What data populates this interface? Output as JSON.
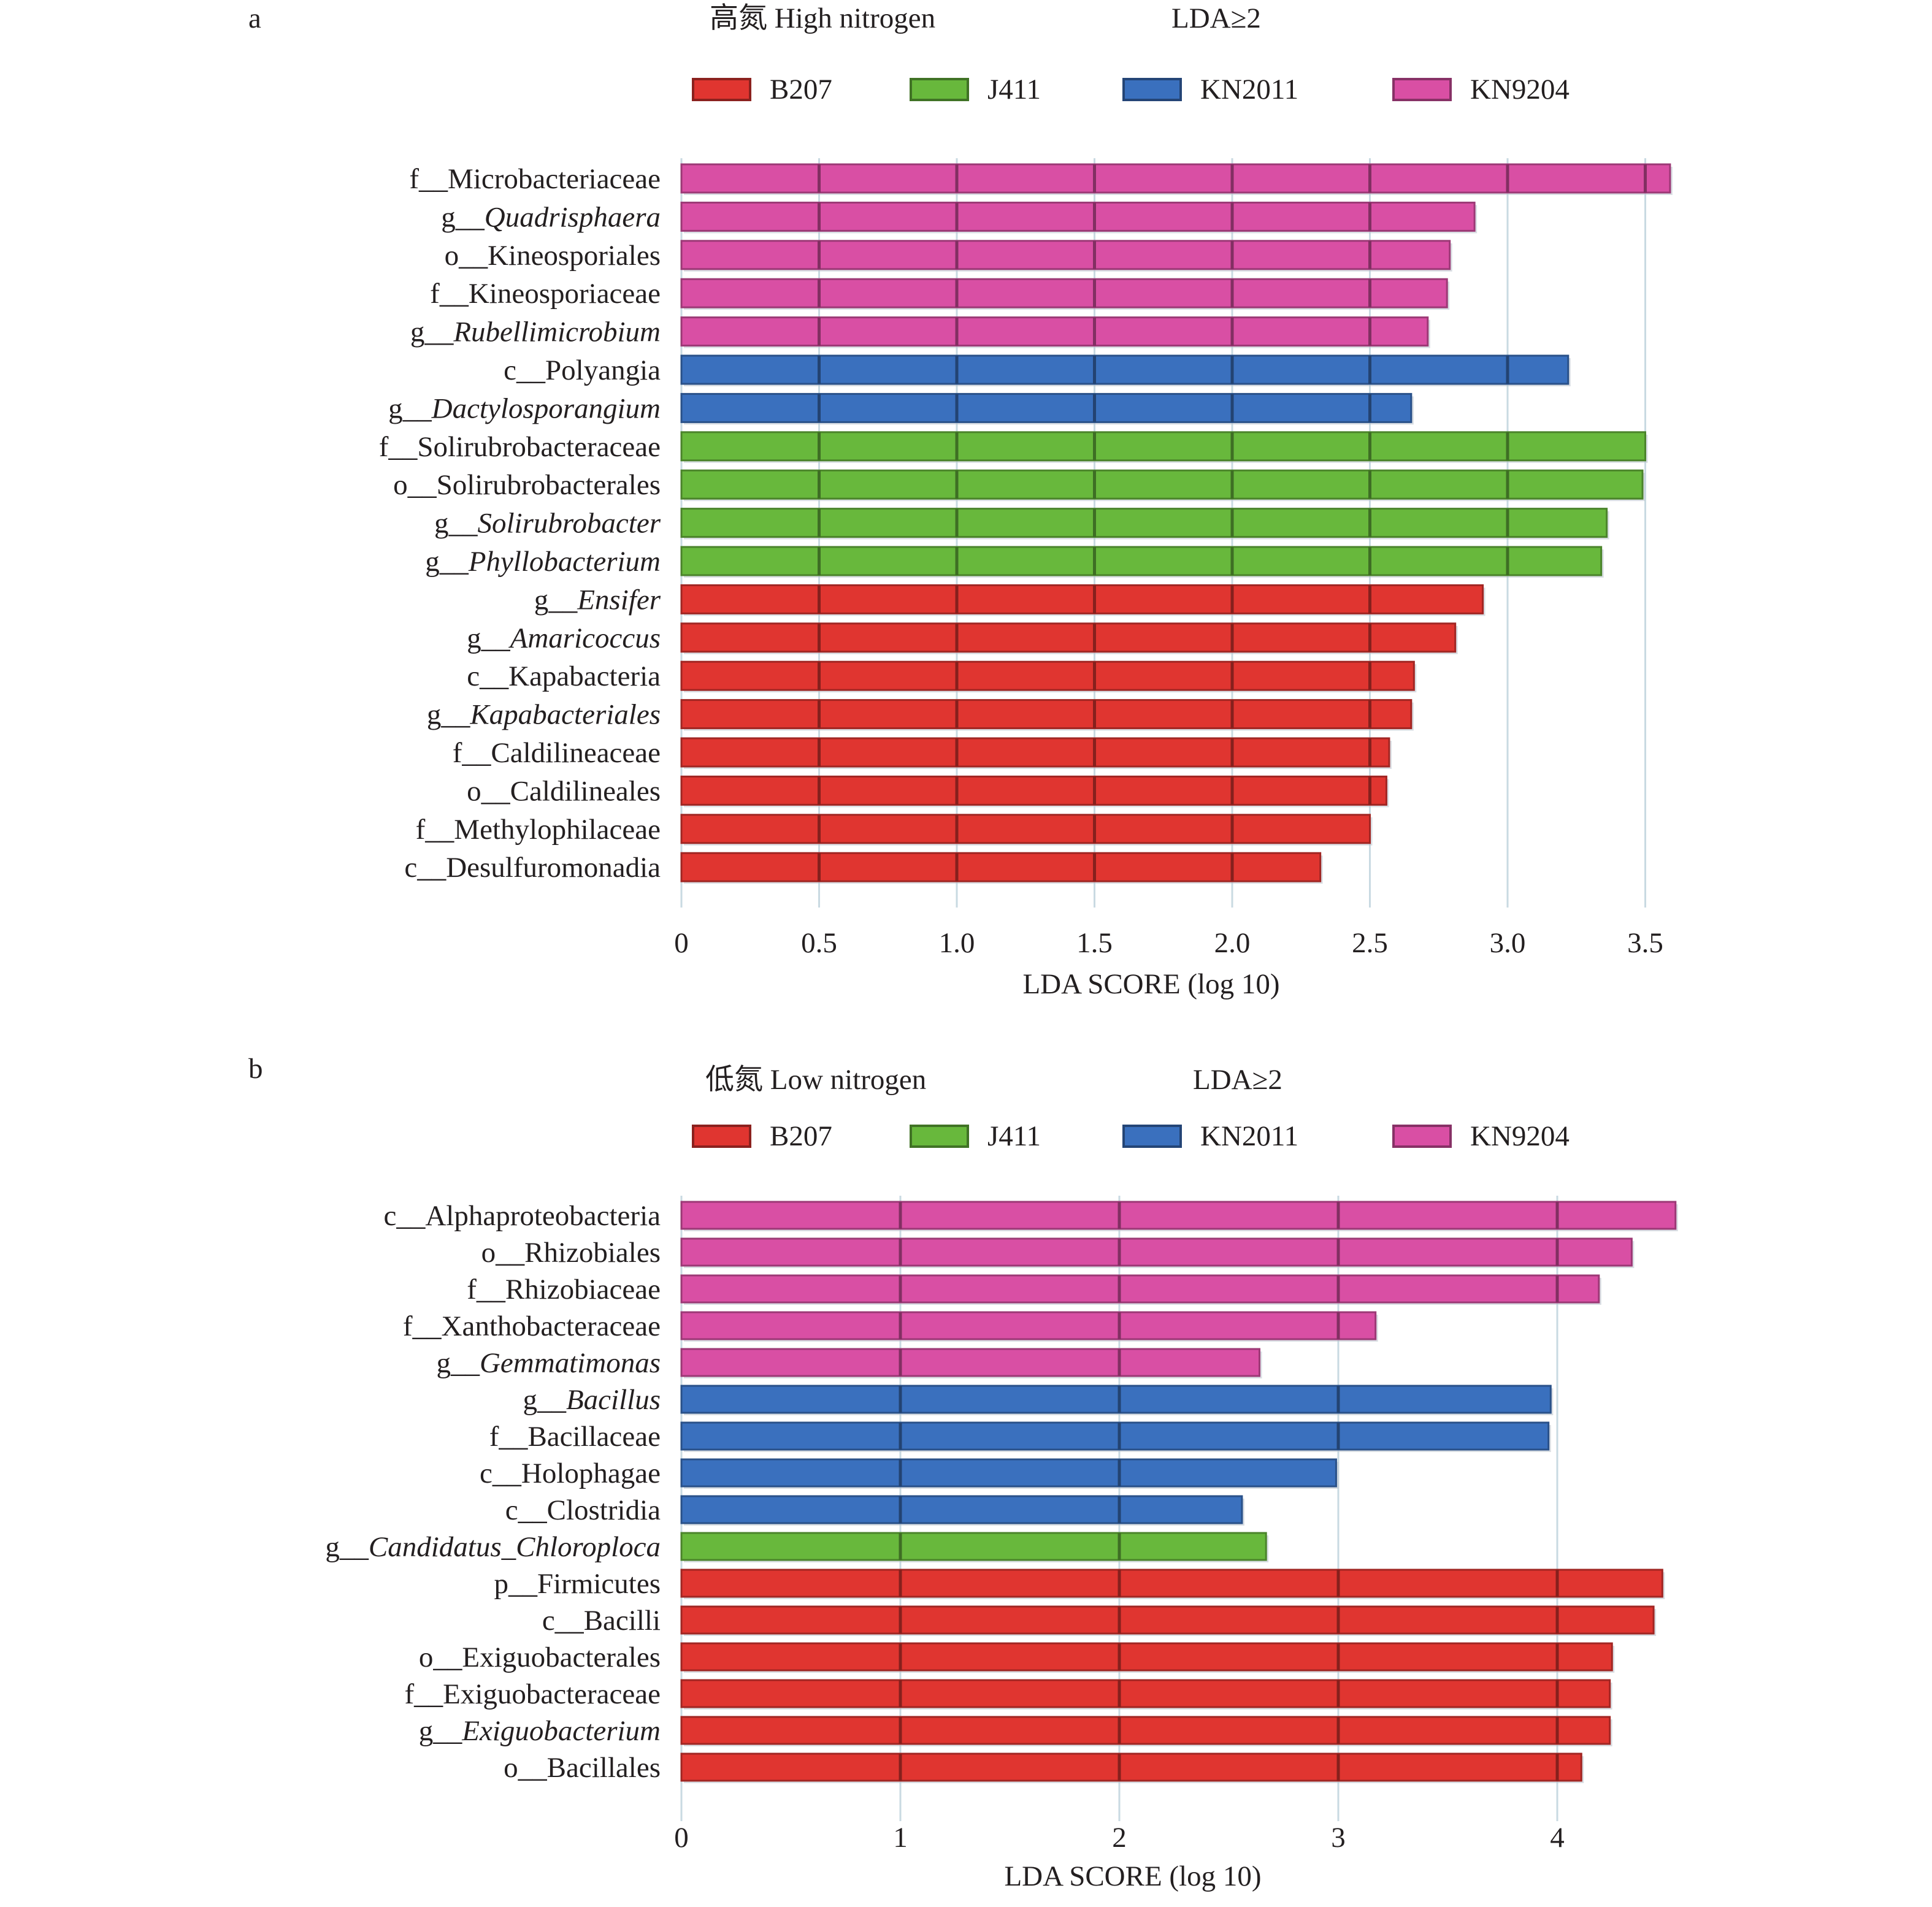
{
  "colors": {
    "B207": "#e03530",
    "J411": "#68b83c",
    "KN2011": "#3a70be",
    "KN9204": "#d94fa4",
    "gridline": "#c9dae2",
    "text": "#231f20"
  },
  "chart_data": [
    {
      "type": "bar",
      "orientation": "horizontal",
      "panel_label": "a",
      "title": "高氮 High nitrogen",
      "threshold_label": "LDA≥2",
      "xlabel": "LDA SCORE (log 10)",
      "ylabel": "",
      "xlim": [
        0,
        3.6
      ],
      "xticks": [
        0,
        0.5,
        1.0,
        1.5,
        2.0,
        2.5,
        3.0,
        3.5
      ],
      "xtick_labels": [
        "0",
        "0.5",
        "1.0",
        "1.5",
        "2.0",
        "2.5",
        "3.0",
        "3.5"
      ],
      "grid": "vertical",
      "legend": {
        "position": "top",
        "entries": [
          "B207",
          "J411",
          "KN2011",
          "KN9204"
        ]
      },
      "bars": [
        {
          "prefix": "f__",
          "name": "Microbacteriaceae",
          "italic": false,
          "group": "KN9204",
          "value": 3.59
        },
        {
          "prefix": "g__",
          "name": "Quadrisphaera",
          "italic": true,
          "group": "KN9204",
          "value": 2.88
        },
        {
          "prefix": "o__",
          "name": "Kineosporiales",
          "italic": false,
          "group": "KN9204",
          "value": 2.79
        },
        {
          "prefix": "f__",
          "name": "Kineosporiaceae",
          "italic": false,
          "group": "KN9204",
          "value": 2.78
        },
        {
          "prefix": "g__",
          "name": "Rubellimicrobium",
          "italic": true,
          "group": "KN9204",
          "value": 2.71
        },
        {
          "prefix": "c__",
          "name": "Polyangia",
          "italic": false,
          "group": "KN2011",
          "value": 3.22
        },
        {
          "prefix": "g__",
          "name": "Dactylosporangium",
          "italic": true,
          "group": "KN2011",
          "value": 2.65
        },
        {
          "prefix": "f__",
          "name": "Solirubrobacteraceae",
          "italic": false,
          "group": "J411",
          "value": 3.5
        },
        {
          "prefix": "o__",
          "name": "Solirubrobacterales",
          "italic": false,
          "group": "J411",
          "value": 3.49
        },
        {
          "prefix": "g__",
          "name": "Solirubrobacter",
          "italic": true,
          "group": "J411",
          "value": 3.36
        },
        {
          "prefix": "g__",
          "name": "Phyllobacterium",
          "italic": true,
          "group": "J411",
          "value": 3.34
        },
        {
          "prefix": "g__",
          "name": "Ensifer",
          "italic": true,
          "group": "B207",
          "value": 2.91
        },
        {
          "prefix": "g__",
          "name": "Amaricoccus",
          "italic": true,
          "group": "B207",
          "value": 2.81
        },
        {
          "prefix": "c__",
          "name": "Kapabacteria",
          "italic": false,
          "group": "B207",
          "value": 2.66
        },
        {
          "prefix": "g__",
          "name": "Kapabacteriales",
          "italic": true,
          "group": "B207",
          "value": 2.65
        },
        {
          "prefix": "f__",
          "name": "Caldilineaceae",
          "italic": false,
          "group": "B207",
          "value": 2.57
        },
        {
          "prefix": "o__",
          "name": "Caldilineales",
          "italic": false,
          "group": "B207",
          "value": 2.56
        },
        {
          "prefix": "f__",
          "name": "Methylophilaceae",
          "italic": false,
          "group": "B207",
          "value": 2.5
        },
        {
          "prefix": "c__",
          "name": "Desulfuromonadia",
          "italic": false,
          "group": "B207",
          "value": 2.32
        }
      ]
    },
    {
      "type": "bar",
      "orientation": "horizontal",
      "panel_label": "b",
      "title": "低氮 Low nitrogen",
      "threshold_label": "LDA≥2",
      "xlabel": "LDA SCORE (log 10)",
      "ylabel": "",
      "xlim": [
        0,
        4.55
      ],
      "xticks": [
        0,
        1,
        2,
        3,
        4
      ],
      "xtick_labels": [
        "0",
        "1",
        "2",
        "3",
        "4"
      ],
      "grid": "vertical",
      "legend": {
        "position": "top",
        "entries": [
          "B207",
          "J411",
          "KN2011",
          "KN9204"
        ]
      },
      "bars": [
        {
          "prefix": "c__",
          "name": "Alphaproteobacteria",
          "italic": false,
          "group": "KN9204",
          "value": 4.54
        },
        {
          "prefix": "o__",
          "name": "Rhizobiales",
          "italic": false,
          "group": "KN9204",
          "value": 4.34
        },
        {
          "prefix": "f__",
          "name": "Rhizobiaceae",
          "italic": false,
          "group": "KN9204",
          "value": 4.19
        },
        {
          "prefix": "f__",
          "name": "Xanthobacteraceae",
          "italic": false,
          "group": "KN9204",
          "value": 3.17
        },
        {
          "prefix": "g__",
          "name": "Gemmatimonas",
          "italic": true,
          "group": "KN9204",
          "value": 2.64
        },
        {
          "prefix": "g__",
          "name": "Bacillus",
          "italic": true,
          "group": "KN2011",
          "value": 3.97
        },
        {
          "prefix": "f__",
          "name": "Bacillaceae",
          "italic": false,
          "group": "KN2011",
          "value": 3.96
        },
        {
          "prefix": "c__",
          "name": "Holophagae",
          "italic": false,
          "group": "KN2011",
          "value": 2.99
        },
        {
          "prefix": "c__",
          "name": "Clostridia",
          "italic": false,
          "group": "KN2011",
          "value": 2.56
        },
        {
          "prefix": "g__",
          "name": "Candidatus_Chloroploca",
          "italic": true,
          "group": "J411",
          "value": 2.67
        },
        {
          "prefix": "p__",
          "name": "Firmicutes",
          "italic": false,
          "group": "B207",
          "value": 4.48
        },
        {
          "prefix": "c__",
          "name": "Bacilli",
          "italic": false,
          "group": "B207",
          "value": 4.44
        },
        {
          "prefix": "o__",
          "name": "Exiguobacterales",
          "italic": false,
          "group": "B207",
          "value": 4.25
        },
        {
          "prefix": "f__",
          "name": "Exiguobacteraceae",
          "italic": false,
          "group": "B207",
          "value": 4.24
        },
        {
          "prefix": "g__",
          "name": "Exiguobacterium",
          "italic": true,
          "group": "B207",
          "value": 4.24
        },
        {
          "prefix": "o__",
          "name": "Bacillales",
          "italic": false,
          "group": "B207",
          "value": 4.11
        }
      ]
    }
  ]
}
